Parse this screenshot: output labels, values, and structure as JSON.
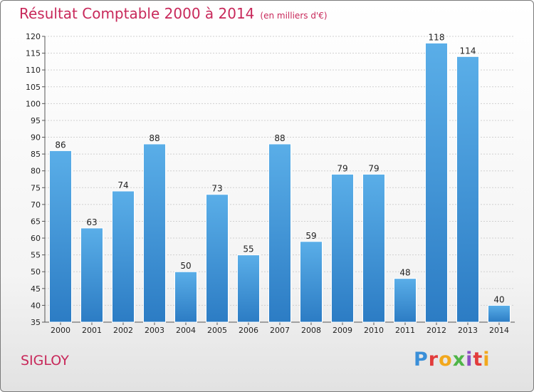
{
  "header": {
    "title": "Résultat Comptable 2000 à 2014",
    "subtitle": "(en milliers d'€)"
  },
  "footer": {
    "place": "SIGLOY",
    "logo": [
      "P",
      "r",
      "o",
      "x",
      "i",
      "t",
      "i"
    ]
  },
  "colors": {
    "bar_light": "#5aaee8",
    "bar_dark": "#2c7cc4",
    "title": "#c8285a"
  },
  "chart_data": {
    "type": "bar",
    "categories": [
      "2000",
      "2001",
      "2002",
      "2003",
      "2004",
      "2005",
      "2006",
      "2007",
      "2008",
      "2009",
      "2010",
      "2011",
      "2012",
      "2013",
      "2014"
    ],
    "values": [
      86,
      63,
      74,
      88,
      50,
      73,
      55,
      88,
      59,
      79,
      79,
      48,
      118,
      114,
      40
    ],
    "ylim": [
      35,
      120
    ],
    "yticks": [
      35,
      40,
      45,
      50,
      55,
      60,
      65,
      70,
      75,
      80,
      85,
      90,
      95,
      100,
      105,
      110,
      115,
      120
    ],
    "grid": true
  }
}
